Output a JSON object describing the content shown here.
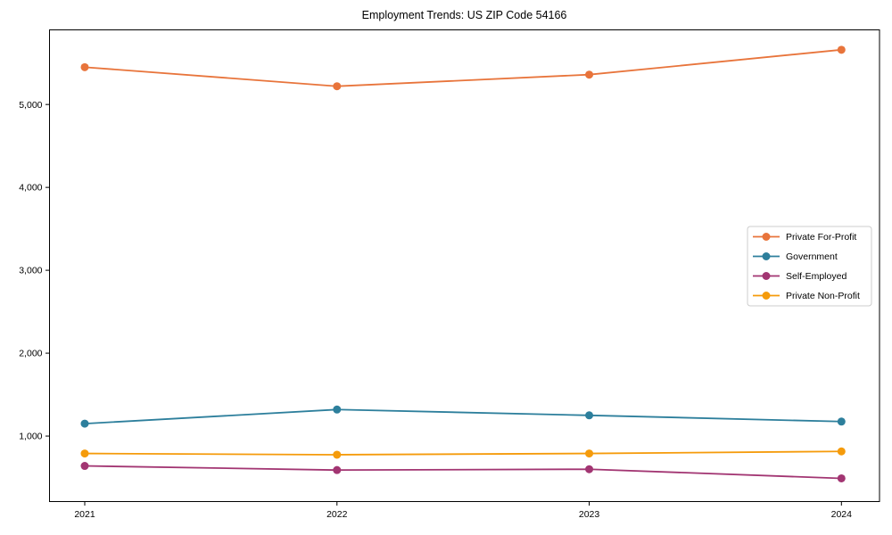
{
  "title": "Employment Trends: US ZIP Code 54166",
  "chart_data": {
    "type": "line",
    "title": "Employment Trends: US ZIP Code 54166",
    "xlabel": "",
    "ylabel": "",
    "x": [
      2021,
      2022,
      2023,
      2024
    ],
    "xtick_labels": [
      "2021",
      "2022",
      "2023",
      "2024"
    ],
    "yticks": [
      1000,
      2000,
      3000,
      4000,
      5000
    ],
    "ytick_labels": [
      "1,000",
      "2,000",
      "3,000",
      "4,000",
      "5,000"
    ],
    "ylim": [
      210,
      5900
    ],
    "grid": false,
    "legend_position": "center-right",
    "series": [
      {
        "name": "Private For-Profit",
        "color": "#e8743b",
        "values": [
          5450,
          5220,
          5360,
          5660
        ]
      },
      {
        "name": "Government",
        "color": "#2d7f9c",
        "values": [
          1150,
          1320,
          1250,
          1175
        ]
      },
      {
        "name": "Self-Employed",
        "color": "#a23572",
        "values": [
          640,
          590,
          600,
          490
        ]
      },
      {
        "name": "Private Non-Profit",
        "color": "#f59b0b",
        "values": [
          790,
          775,
          790,
          815
        ]
      }
    ],
    "text_color": "#000000",
    "spine_color": "#000000",
    "legend_border_color": "#cccccc",
    "background_color": "#ffffff"
  }
}
